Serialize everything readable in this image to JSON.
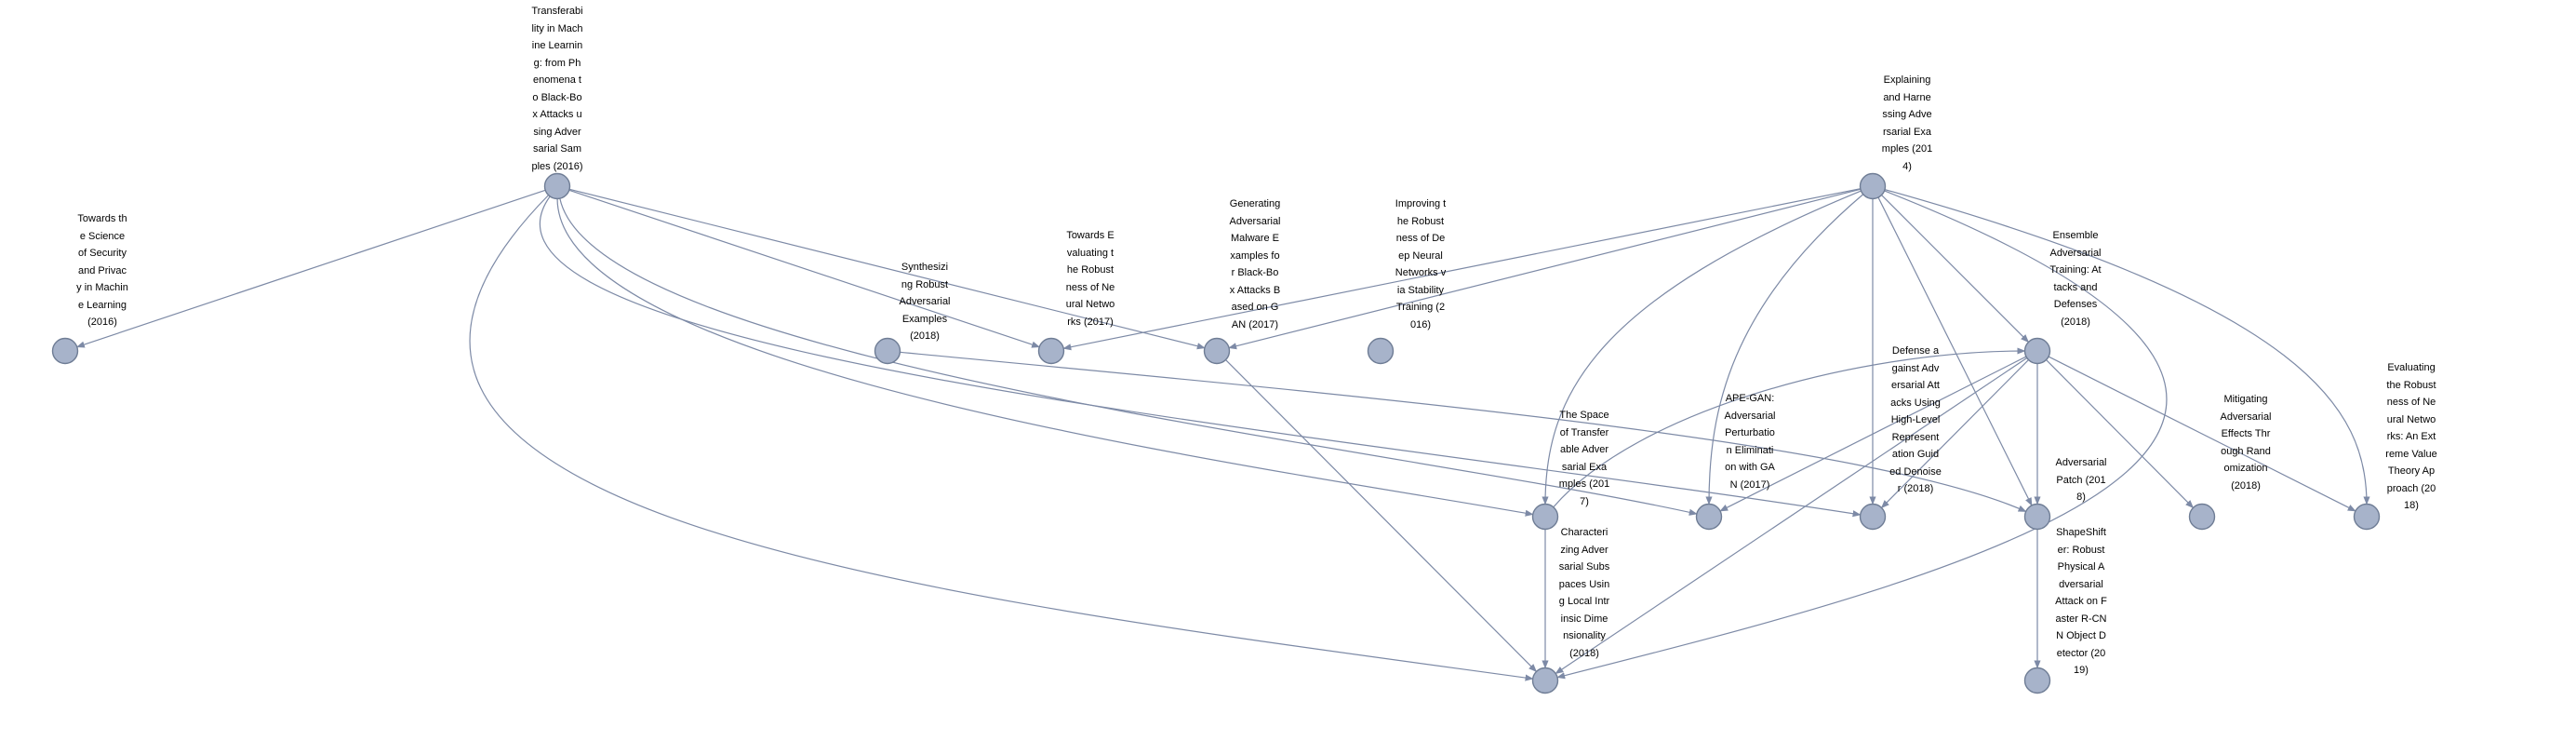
{
  "colors": {
    "node_fill": "#a7b3ca",
    "node_stroke": "#6f7d95",
    "edge": "#7d8aa6",
    "label": "#000000"
  },
  "nodes": [
    {
      "id": "n_transfer",
      "text": "Transferability in Machine Learning: from Phenomena to Black-Box Attacks using Adversarial Samples (2016)"
    },
    {
      "id": "n_explain",
      "text": "Explaining and Harnessing Adversarial Examples (2014)"
    },
    {
      "id": "n_science",
      "text": "Towards the Science of Security and Privacy in Machine Learning (2016)"
    },
    {
      "id": "n_synth",
      "text": "Synthesizing Robust Adversarial Examples (2018)"
    },
    {
      "id": "n_robust",
      "text": "Towards Evaluating the Robustness of Neural Networks (2017)"
    },
    {
      "id": "n_malware",
      "text": "Generating Adversarial Malware Examples for Black-Box Attacks Based on GAN (2017)"
    },
    {
      "id": "n_improving",
      "text": "Improving the Robustness of Deep Neural Networks via Stability Training (2016)"
    },
    {
      "id": "n_ensemble",
      "text": "Ensemble Adversarial Training: Attacks and Defenses (2018)"
    },
    {
      "id": "n_space",
      "text": "The Space of Transferable Adversarial Examples (2017)"
    },
    {
      "id": "n_apegan",
      "text": "APE-GAN: Adversarial Perturbation Elimination with GAN (2017)"
    },
    {
      "id": "n_defense",
      "text": "Defense against Adversarial Attacks Using High-Level Representation Guided Denoiser (2018)"
    },
    {
      "id": "n_patch",
      "text": "Adversarial Patch (2018)"
    },
    {
      "id": "n_mitigating",
      "text": "Mitigating Adversarial Effects Through Randomization (2018)"
    },
    {
      "id": "n_evaluating",
      "text": "Evaluating the Robustness of Neural Networks: An Extreme Value Theory Approach (2018)"
    },
    {
      "id": "n_character",
      "text": "Characterizing Adversarial Subspaces Using Local Intrinsic Dimensionality (2018)"
    },
    {
      "id": "n_shape",
      "text": "ShapeShifter: Robust Physical Adversarial Attack on Faster R-CNN Object Detector (2019)"
    }
  ],
  "edges": [
    [
      "n_transfer",
      "n_science"
    ],
    [
      "n_transfer",
      "n_robust"
    ],
    [
      "n_transfer",
      "n_malware"
    ],
    [
      "n_transfer",
      "n_space"
    ],
    [
      "n_transfer",
      "n_apegan"
    ],
    [
      "n_transfer",
      "n_defense"
    ],
    [
      "n_transfer",
      "n_character"
    ],
    [
      "n_explain",
      "n_robust"
    ],
    [
      "n_explain",
      "n_malware"
    ],
    [
      "n_explain",
      "n_ensemble"
    ],
    [
      "n_explain",
      "n_space"
    ],
    [
      "n_explain",
      "n_apegan"
    ],
    [
      "n_explain",
      "n_defense"
    ],
    [
      "n_explain",
      "n_patch"
    ],
    [
      "n_explain",
      "n_evaluating"
    ],
    [
      "n_explain",
      "n_character"
    ],
    [
      "n_synth",
      "n_patch"
    ],
    [
      "n_malware",
      "n_character"
    ],
    [
      "n_ensemble",
      "n_apegan"
    ],
    [
      "n_ensemble",
      "n_defense"
    ],
    [
      "n_ensemble",
      "n_patch"
    ],
    [
      "n_ensemble",
      "n_mitigating"
    ],
    [
      "n_ensemble",
      "n_evaluating"
    ],
    [
      "n_ensemble",
      "n_character"
    ],
    [
      "n_space",
      "n_ensemble"
    ],
    [
      "n_space",
      "n_character"
    ],
    [
      "n_patch",
      "n_shape"
    ]
  ]
}
